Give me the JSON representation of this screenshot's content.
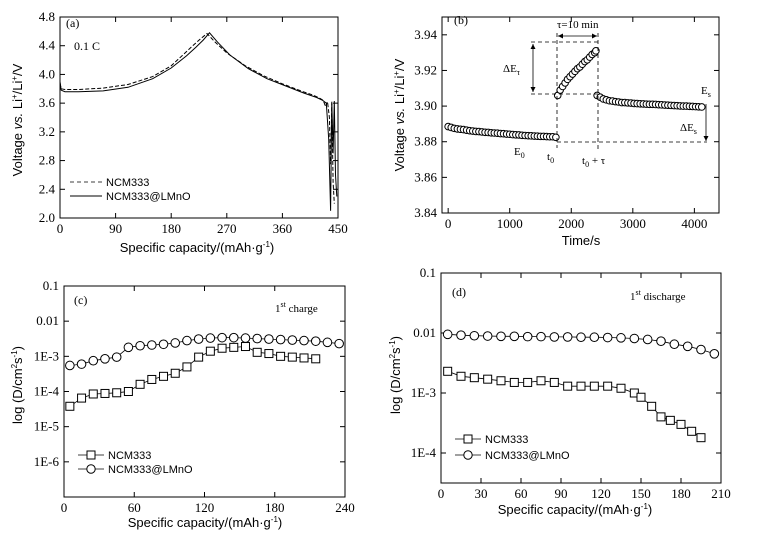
{
  "chart_data": [
    {
      "type": "line",
      "panel_label": "(a)",
      "annotation": "0.1 C",
      "xlabel": "Specific capacity/(mAh·g⁻¹)",
      "ylabel": "Voltage vs. Li⁺/Li⁺/V",
      "xlim": [
        0,
        450
      ],
      "ylim": [
        2.0,
        4.8
      ],
      "xticks": [
        "0",
        "90",
        "180",
        "270",
        "360",
        "450"
      ],
      "yticks": [
        "2.0",
        "2.4",
        "2.8",
        "3.2",
        "3.6",
        "4.0",
        "4.4",
        "4.8"
      ],
      "legend_position": "bottom-left",
      "series": [
        {
          "name": "NCM333",
          "style": "dashed",
          "x": [
            0,
            2,
            8,
            30,
            70,
            110,
            150,
            180,
            200,
            215,
            228,
            238,
            250,
            270,
            300,
            330,
            360,
            390,
            410,
            420,
            426,
            430,
            433,
            436,
            438,
            440,
            442,
            444
          ],
          "y": [
            3.88,
            3.8,
            3.79,
            3.79,
            3.81,
            3.86,
            3.97,
            4.12,
            4.28,
            4.4,
            4.5,
            4.57,
            4.46,
            4.3,
            4.12,
            3.98,
            3.87,
            3.77,
            3.71,
            3.67,
            3.64,
            3.55,
            3.62,
            3.4,
            2.75,
            3.6,
            2.5,
            2.2
          ]
        },
        {
          "name": "NCM333@LMnO",
          "style": "solid",
          "x": [
            0,
            2,
            8,
            30,
            70,
            110,
            150,
            180,
            205,
            220,
            232,
            242,
            255,
            275,
            305,
            335,
            365,
            395,
            415,
            425,
            431,
            435,
            438,
            440,
            442,
            444,
            446,
            448
          ],
          "y": [
            3.9,
            3.78,
            3.76,
            3.76,
            3.77,
            3.82,
            3.94,
            4.09,
            4.26,
            4.38,
            4.48,
            4.58,
            4.45,
            4.27,
            4.08,
            3.94,
            3.84,
            3.74,
            3.68,
            3.64,
            3.6,
            3.1,
            2.1,
            3.62,
            2.9,
            3.63,
            2.6,
            2.3
          ]
        }
      ]
    },
    {
      "type": "scatter",
      "panel_label": "(b)",
      "xlabel": "Time/s",
      "ylabel": "Voltage vs. Li⁺/Li⁺/V",
      "xlim": [
        -100,
        4400
      ],
      "ylim": [
        3.84,
        3.95
      ],
      "xticks": [
        "0",
        "1000",
        "2000",
        "3000",
        "4000"
      ],
      "yticks": [
        "3.84",
        "3.86",
        "3.88",
        "3.90",
        "3.92",
        "3.94"
      ],
      "annotations": [
        "τ=10 min",
        "ΔEτ",
        "ΔEs",
        "E0",
        "Es",
        "t0",
        "t0 + τ"
      ],
      "series": [
        {
          "name": "",
          "x": [
            0,
            50,
            100,
            150,
            200,
            250,
            300,
            350,
            400,
            450,
            500,
            550,
            600,
            650,
            700,
            750,
            800,
            850,
            900,
            950,
            1000,
            1050,
            1100,
            1150,
            1200,
            1250,
            1300,
            1350,
            1400,
            1450,
            1500,
            1550,
            1600,
            1650,
            1700,
            1750
          ],
          "y": [
            3.8885,
            3.888,
            3.8875,
            3.8872,
            3.887,
            3.8868,
            3.8865,
            3.8862,
            3.886,
            3.8858,
            3.8857,
            3.8855,
            3.8853,
            3.8852,
            3.885,
            3.8849,
            3.8848,
            3.8846,
            3.8845,
            3.8843,
            3.8842,
            3.884,
            3.8839,
            3.8838,
            3.8836,
            3.8835,
            3.8834,
            3.8833,
            3.8832,
            3.8831,
            3.883,
            3.883,
            3.8829,
            3.8828,
            3.8828,
            3.8825
          ]
        },
        {
          "name": "",
          "x": [
            1780,
            1820,
            1860,
            1900,
            1940,
            1980,
            2020,
            2060,
            2100,
            2140,
            2180,
            2220,
            2260,
            2300,
            2340,
            2380,
            2400
          ],
          "y": [
            3.906,
            3.909,
            3.911,
            3.913,
            3.915,
            3.9165,
            3.918,
            3.9195,
            3.921,
            3.922,
            3.9235,
            3.925,
            3.926,
            3.9275,
            3.929,
            3.93,
            3.931
          ]
        },
        {
          "name": "",
          "x": [
            2420,
            2470,
            2520,
            2570,
            2620,
            2670,
            2720,
            2770,
            2820,
            2870,
            2920,
            2970,
            3020,
            3070,
            3120,
            3170,
            3220,
            3270,
            3320,
            3370,
            3420,
            3470,
            3520,
            3570,
            3620,
            3670,
            3720,
            3770,
            3820,
            3870,
            3920,
            3970,
            4020,
            4070,
            4120
          ],
          "y": [
            3.906,
            3.905,
            3.904,
            3.9035,
            3.903,
            3.9028,
            3.9025,
            3.9023,
            3.902,
            3.902,
            3.9018,
            3.9017,
            3.9015,
            3.9014,
            3.9013,
            3.9012,
            3.9011,
            3.901,
            3.901,
            3.9009,
            3.9008,
            3.9007,
            3.9006,
            3.9005,
            3.9004,
            3.9003,
            3.9002,
            3.9001,
            3.9,
            3.9,
            3.8999,
            3.8998,
            3.8997,
            3.8996,
            3.8995
          ]
        }
      ]
    },
    {
      "type": "scatter",
      "panel_label": "(c)",
      "annotation": "1st charge",
      "xlabel": "Specific capacity/(mAh·g⁻¹)",
      "ylabel": "log (D/cm²s⁻¹)",
      "xlim": [
        0,
        240
      ],
      "ylim_log10": [
        -7,
        -1
      ],
      "xticks": [
        "0",
        "60",
        "120",
        "180",
        "240"
      ],
      "yticks": [
        "0.1",
        "0.01",
        "1E-3",
        "1E-4",
        "1E-5",
        "1E-6"
      ],
      "legend_position": "bottom-left",
      "series": [
        {
          "name": "NCM333",
          "marker": "square",
          "x": [
            5,
            15,
            25,
            35,
            45,
            55,
            65,
            75,
            85,
            95,
            105,
            115,
            125,
            135,
            145,
            155,
            165,
            175,
            185,
            195,
            205,
            215
          ],
          "y": [
            3.8e-05,
            6.5e-05,
            8.5e-05,
            8.8e-05,
            9.2e-05,
            0.0001,
            0.00016,
            0.00022,
            0.00027,
            0.00033,
            0.0005,
            0.00095,
            0.0014,
            0.0017,
            0.0018,
            0.0019,
            0.0013,
            0.0012,
            0.001,
            0.00095,
            0.0009,
            0.00085
          ]
        },
        {
          "name": "NCM333@LMnO",
          "marker": "circle",
          "x": [
            5,
            15,
            25,
            35,
            45,
            55,
            65,
            75,
            85,
            95,
            105,
            115,
            125,
            135,
            145,
            155,
            165,
            175,
            185,
            195,
            205,
            215,
            225,
            235
          ],
          "y": [
            0.00055,
            0.0006,
            0.00075,
            0.00085,
            0.00095,
            0.0018,
            0.002,
            0.0021,
            0.0022,
            0.0024,
            0.0028,
            0.0031,
            0.0033,
            0.0034,
            0.0034,
            0.0033,
            0.0032,
            0.0031,
            0.003,
            0.0029,
            0.0028,
            0.0027,
            0.0025,
            0.0023
          ]
        }
      ]
    },
    {
      "type": "scatter",
      "panel_label": "(d)",
      "annotation": "1st discharge",
      "xlabel": "Specific capacity/(mAh·g⁻¹)",
      "ylabel": "log (D/cm²s⁻¹)",
      "xlim": [
        0,
        210
      ],
      "ylim_log10": [
        -4.5,
        -1
      ],
      "xticks": [
        "0",
        "30",
        "60",
        "90",
        "120",
        "150",
        "180",
        "210"
      ],
      "yticks": [
        "0.1",
        "0.01",
        "1E-3",
        "1E-4"
      ],
      "legend_position": "bottom-left",
      "series": [
        {
          "name": "NCM333",
          "marker": "square",
          "x": [
            5,
            15,
            25,
            35,
            45,
            55,
            65,
            75,
            85,
            95,
            105,
            115,
            125,
            135,
            145,
            150,
            158,
            165,
            172,
            180,
            188,
            195
          ],
          "y": [
            0.0023,
            0.0019,
            0.0018,
            0.0017,
            0.0016,
            0.0015,
            0.0015,
            0.0016,
            0.0015,
            0.0013,
            0.0013,
            0.0013,
            0.0013,
            0.0012,
            0.001,
            0.00085,
            0.0006,
            0.0004,
            0.00035,
            0.0003,
            0.00023,
            0.00018
          ]
        },
        {
          "name": "NCM333@LMnO",
          "marker": "circle",
          "x": [
            5,
            15,
            25,
            35,
            45,
            55,
            65,
            75,
            85,
            95,
            105,
            115,
            125,
            135,
            145,
            155,
            165,
            175,
            185,
            195,
            205
          ],
          "y": [
            0.0095,
            0.0092,
            0.009,
            0.0089,
            0.0088,
            0.0088,
            0.0087,
            0.0087,
            0.0086,
            0.0086,
            0.0085,
            0.0085,
            0.0084,
            0.0083,
            0.0081,
            0.0078,
            0.0073,
            0.0065,
            0.006,
            0.0053,
            0.0045
          ]
        }
      ]
    }
  ],
  "ui": {
    "panel_a": {
      "label": "(a)",
      "annotation": "0.1 C",
      "legend_1": "NCM333",
      "legend_2": "NCM333@LMnO",
      "xlabel": "Specific capacity/(mAh·g",
      "xlabel_sup": "-1",
      "xlabel_end": ")",
      "ylabel_a": "Voltage ",
      "ylabel_vs": "vs.",
      "ylabel_b": " Li",
      "ylabel_sup1": "+",
      "ylabel_c": "/Li",
      "ylabel_sup2": "+",
      "ylabel_d": "/V"
    },
    "panel_b": {
      "label": "(b)",
      "tau": "τ=10 min",
      "dE": "ΔE",
      "dE_tau_sub": "τ",
      "dE_s_sub": "s",
      "E": "E",
      "E0_sub": "0",
      "Es_sub": "s",
      "t": "t",
      "t0_sub": "0",
      "t0_plus": "t",
      "t0_plus_sub": "0",
      "t0_plus_end": " + τ",
      "xlabel": "Time/s",
      "ylabel_a": "Voltage ",
      "ylabel_vs": "vs.",
      "ylabel_b": " Li",
      "ylabel_sup1": "+",
      "ylabel_c": "/Li",
      "ylabel_sup2": "+",
      "ylabel_d": "/V"
    },
    "panel_c": {
      "label": "(c)",
      "annot_main": "1",
      "annot_sup": "st",
      "annot_end": " charge",
      "legend_1": "NCM333",
      "legend_2": "NCM333@LMnO",
      "xlabel": "Specific capacity/(mAh·g",
      "xlabel_sup": "-1",
      "xlabel_end": ")",
      "ylabel_a": "log (D/cm",
      "ylabel_sup1": "2",
      "ylabel_b": "s",
      "ylabel_sup2": "-1",
      "ylabel_c": ")"
    },
    "panel_d": {
      "label": "(d)",
      "annot_main": "1",
      "annot_sup": "st",
      "annot_end": " discharge",
      "legend_1": "NCM333",
      "legend_2": "NCM333@LMnO",
      "xlabel": "Specific capacity/(mAh·g",
      "xlabel_sup": "-1",
      "xlabel_end": ")",
      "ylabel_a": "log (D/cm",
      "ylabel_sup1": "2",
      "ylabel_b": "s",
      "ylabel_sup2": "-1",
      "ylabel_c": ")"
    }
  }
}
